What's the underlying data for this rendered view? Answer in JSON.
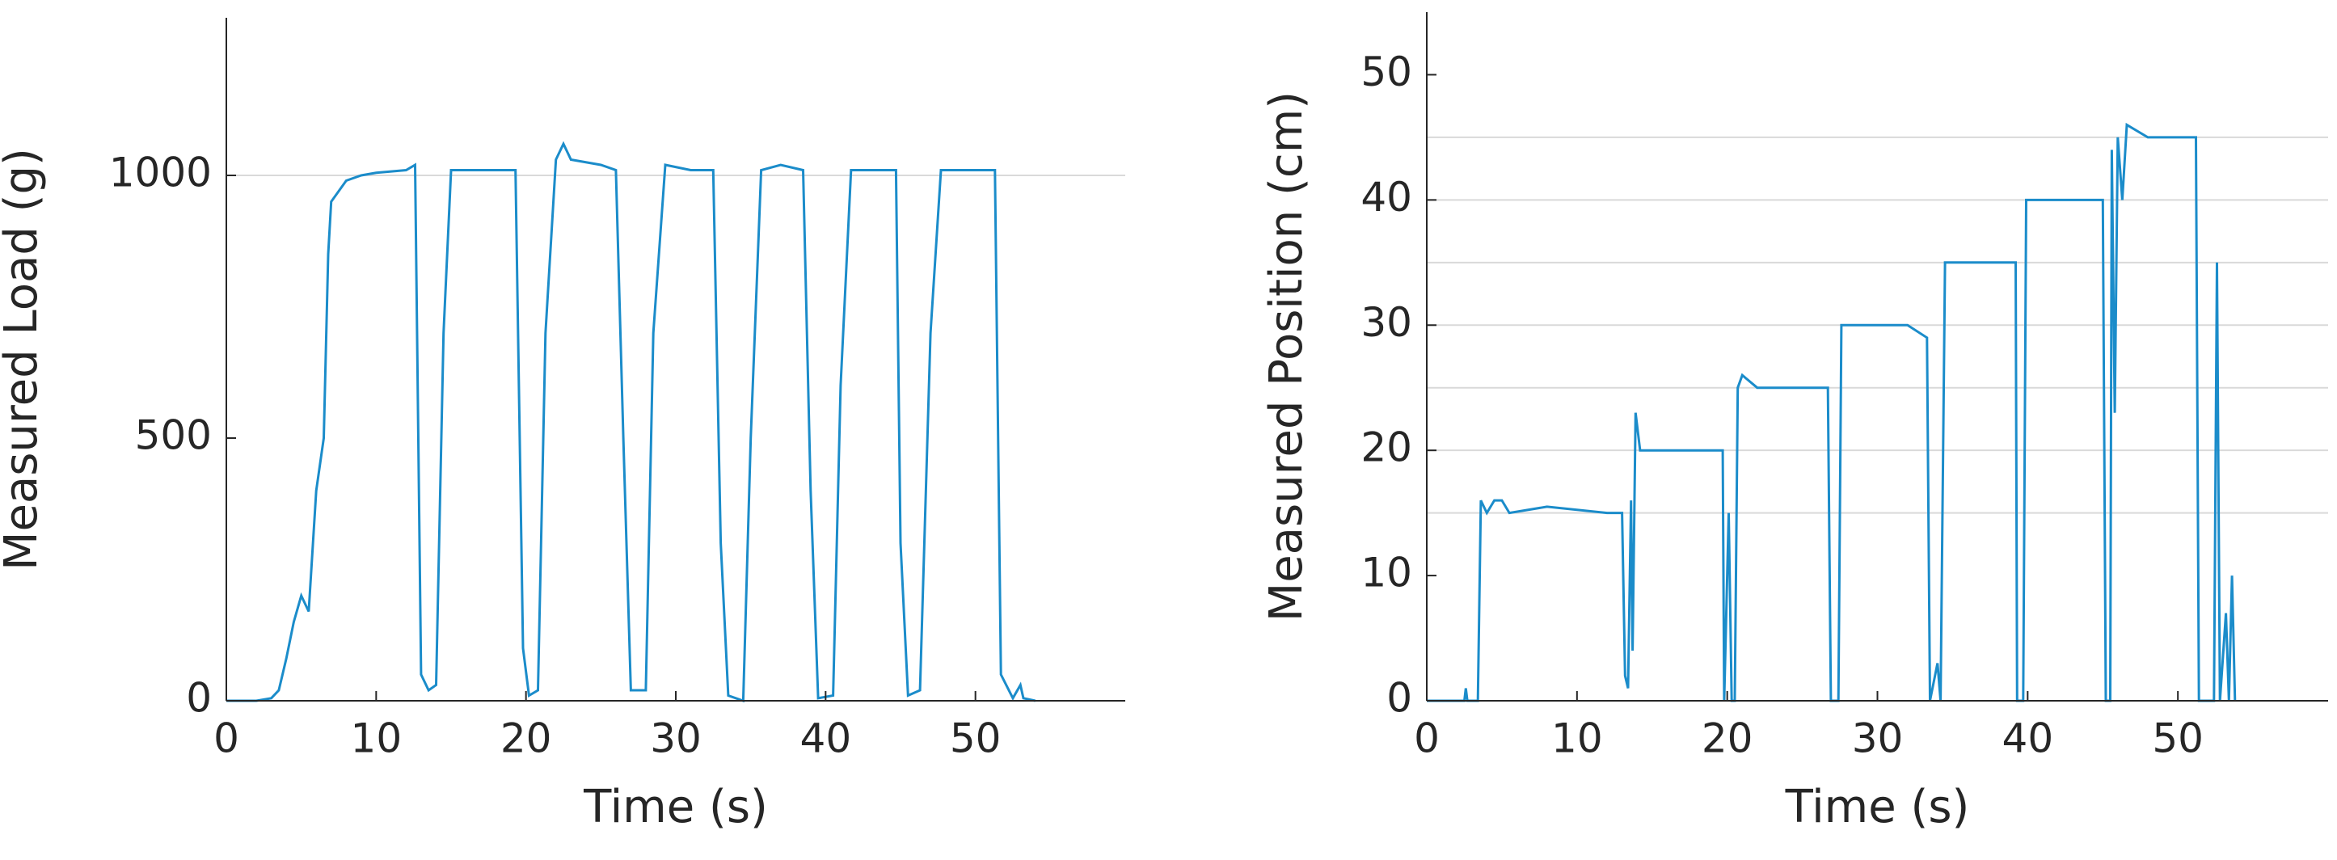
{
  "chart_data": [
    {
      "type": "line",
      "xlabel": "Time (s)",
      "ylabel": "Measured Load (g)",
      "xlim": [
        0,
        60
      ],
      "ylim": [
        0,
        1300
      ],
      "xticks": [
        0,
        10,
        20,
        30,
        40,
        50
      ],
      "yticks": [
        0,
        500,
        1000
      ],
      "ygrid": [
        1000
      ],
      "color": "#1b8cca",
      "x": [
        0,
        2,
        3,
        3.5,
        4,
        4.5,
        5,
        5.5,
        6,
        6.5,
        6.8,
        7,
        8,
        9,
        10,
        12,
        12.6,
        13,
        13.5,
        14,
        14.5,
        15,
        16,
        18,
        19.3,
        19.8,
        20.2,
        20.8,
        21.3,
        22,
        22.5,
        23,
        25,
        26,
        26.5,
        27,
        28,
        28.5,
        29.3,
        31,
        32.5,
        33,
        33.5,
        34.5,
        35,
        35.7,
        37,
        38.5,
        39,
        39.5,
        40.5,
        41,
        41.7,
        44,
        44.7,
        45,
        45.5,
        46.3,
        47,
        47.7,
        50,
        51.3,
        51.7,
        52.5,
        53,
        53.2,
        54
      ],
      "values": [
        0,
        0,
        5,
        20,
        80,
        150,
        200,
        170,
        400,
        500,
        850,
        950,
        990,
        1000,
        1005,
        1010,
        1020,
        50,
        20,
        30,
        700,
        1010,
        1010,
        1010,
        1010,
        100,
        10,
        20,
        700,
        1030,
        1060,
        1030,
        1020,
        1010,
        500,
        20,
        20,
        700,
        1020,
        1010,
        1010,
        300,
        10,
        0,
        500,
        1010,
        1020,
        1010,
        400,
        5,
        10,
        600,
        1010,
        1010,
        1010,
        300,
        10,
        20,
        700,
        1010,
        1010,
        1010,
        50,
        5,
        30,
        5,
        0
      ]
    },
    {
      "type": "line",
      "xlabel": "Time (s)",
      "ylabel": "Measured Position (cm)",
      "xlim": [
        0,
        60
      ],
      "ylim": [
        0,
        55
      ],
      "xticks": [
        0,
        10,
        20,
        30,
        40,
        50
      ],
      "yticks": [
        0,
        10,
        20,
        30,
        40,
        50
      ],
      "ygrid": [
        15,
        20,
        25,
        30,
        35,
        40,
        45
      ],
      "color": "#1b8cca",
      "x": [
        0,
        2.5,
        2.6,
        2.7,
        3.4,
        3.6,
        4,
        4.5,
        5,
        5.5,
        8,
        12,
        13,
        13.2,
        13.4,
        13.6,
        13.7,
        13.9,
        14.2,
        18,
        19.7,
        19.8,
        20.1,
        20.3,
        20.5,
        20.7,
        21,
        22,
        26,
        26.7,
        26.9,
        27.4,
        27.6,
        28,
        32,
        33.3,
        33.5,
        34,
        34.2,
        34.5,
        36,
        38,
        39.2,
        39.3,
        39.7,
        39.9,
        40.5,
        45,
        45.2,
        45.5,
        45.6,
        45.8,
        46,
        46.3,
        46.6,
        48,
        51.2,
        51.4,
        52.4,
        52.6,
        52.8,
        53.2,
        53.4,
        53.6,
        53.8
      ],
      "values": [
        0,
        0,
        1,
        0,
        0,
        16,
        15,
        16,
        16,
        15,
        15.5,
        15,
        15,
        2,
        1,
        16,
        4,
        23,
        20,
        20,
        20,
        0,
        15,
        0,
        0,
        25,
        26,
        25,
        25,
        25,
        0,
        0,
        30,
        30,
        30,
        29,
        0,
        3,
        0,
        35,
        35,
        35,
        35,
        0,
        0,
        40,
        40,
        40,
        0,
        0,
        44,
        23,
        45,
        40,
        46,
        45,
        45,
        0,
        0,
        35,
        0,
        7,
        0,
        10,
        0
      ]
    }
  ]
}
